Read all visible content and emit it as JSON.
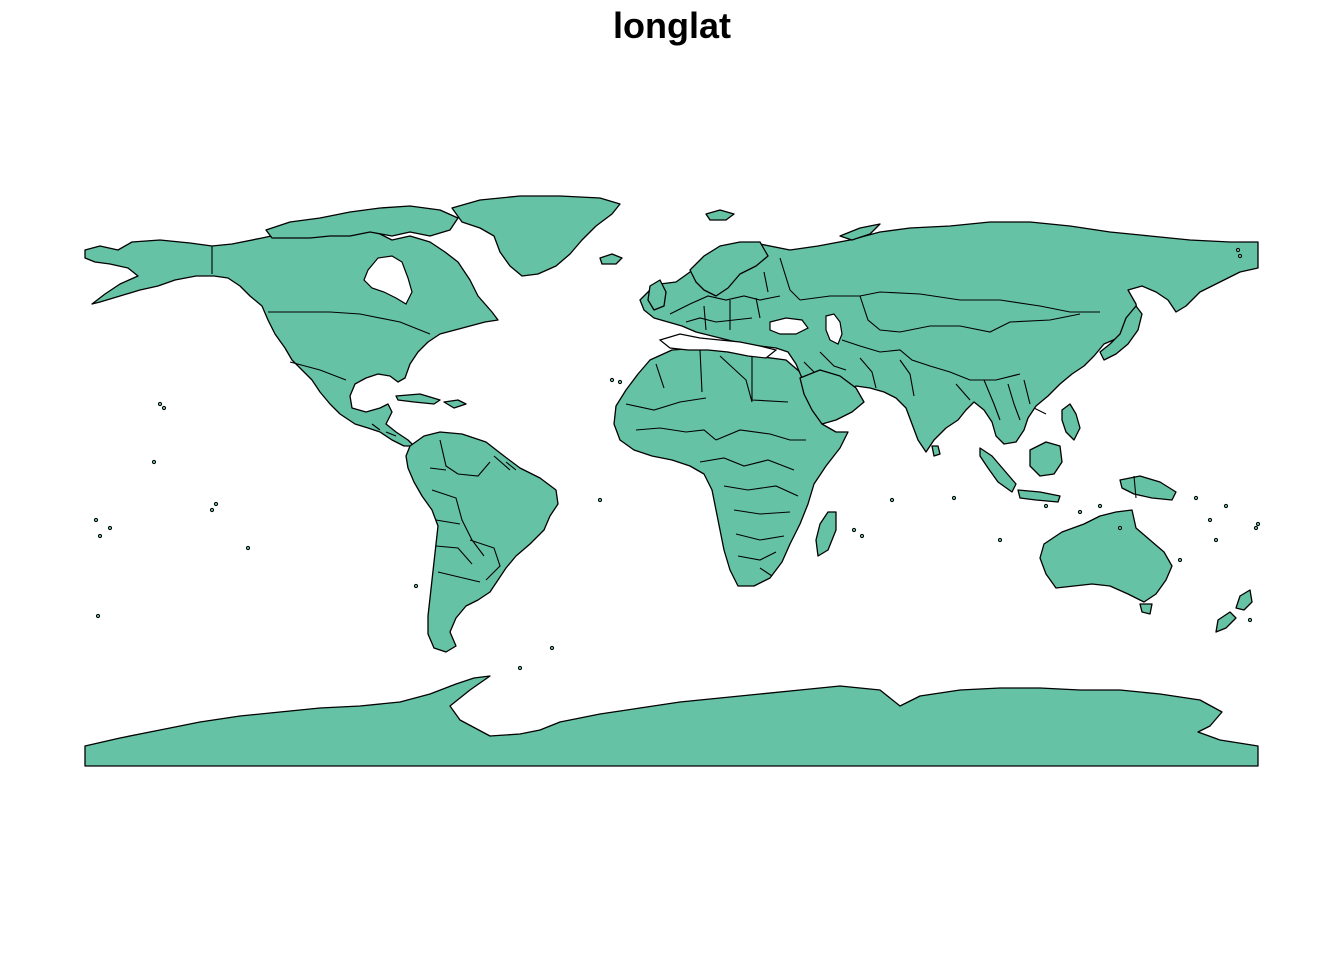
{
  "map": {
    "title": "longlat",
    "projection": "longlat",
    "fill_color": "#66C2A5",
    "border_color": "#000000",
    "background": "#FFFFFF"
  }
}
